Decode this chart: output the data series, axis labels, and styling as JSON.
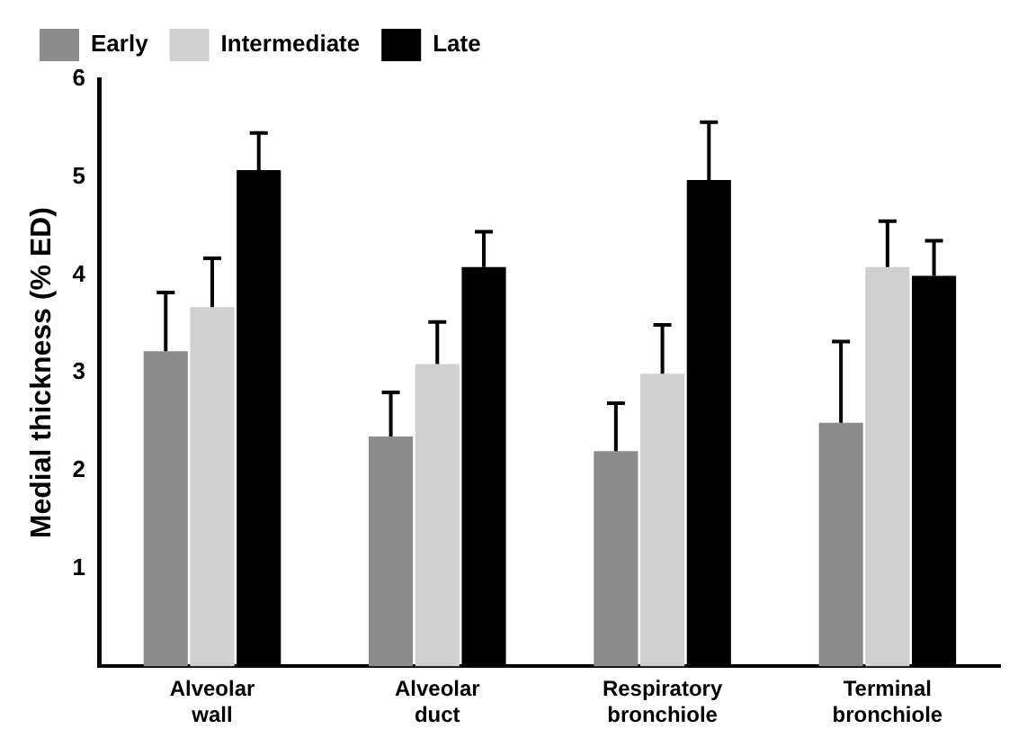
{
  "chart_data": {
    "type": "bar",
    "ylabel": "Medial thickness (% ED)",
    "categories": [
      "Alveolar wall",
      "Alveolar duct",
      "Respiratory bronchiole",
      "Terminal bronchiole"
    ],
    "series": [
      {
        "name": "Early",
        "color": "#8c8c8c",
        "values": [
          3.22,
          2.35,
          2.2,
          2.49
        ],
        "errors": [
          [
            3.22,
            3.82
          ],
          [
            2.35,
            2.8
          ],
          [
            2.2,
            2.69
          ],
          [
            2.49,
            3.32
          ]
        ]
      },
      {
        "name": "Intermediate",
        "color": "#d0d0d0",
        "values": [
          3.67,
          3.09,
          2.99,
          4.08
        ],
        "errors": [
          [
            3.67,
            4.17
          ],
          [
            3.09,
            3.52
          ],
          [
            2.99,
            3.49
          ],
          [
            4.08,
            4.55
          ]
        ]
      },
      {
        "name": "Late",
        "color": "#000000",
        "values": [
          5.07,
          4.08,
          4.97,
          3.99
        ],
        "errors": [
          [
            5.07,
            5.45
          ],
          [
            4.08,
            4.44
          ],
          [
            4.97,
            5.56
          ],
          [
            3.99,
            4.35
          ]
        ]
      }
    ],
    "ylim": [
      0,
      6
    ],
    "yticks": [
      1,
      2,
      3,
      4,
      5,
      6
    ],
    "grid": false,
    "legend": "top left"
  }
}
